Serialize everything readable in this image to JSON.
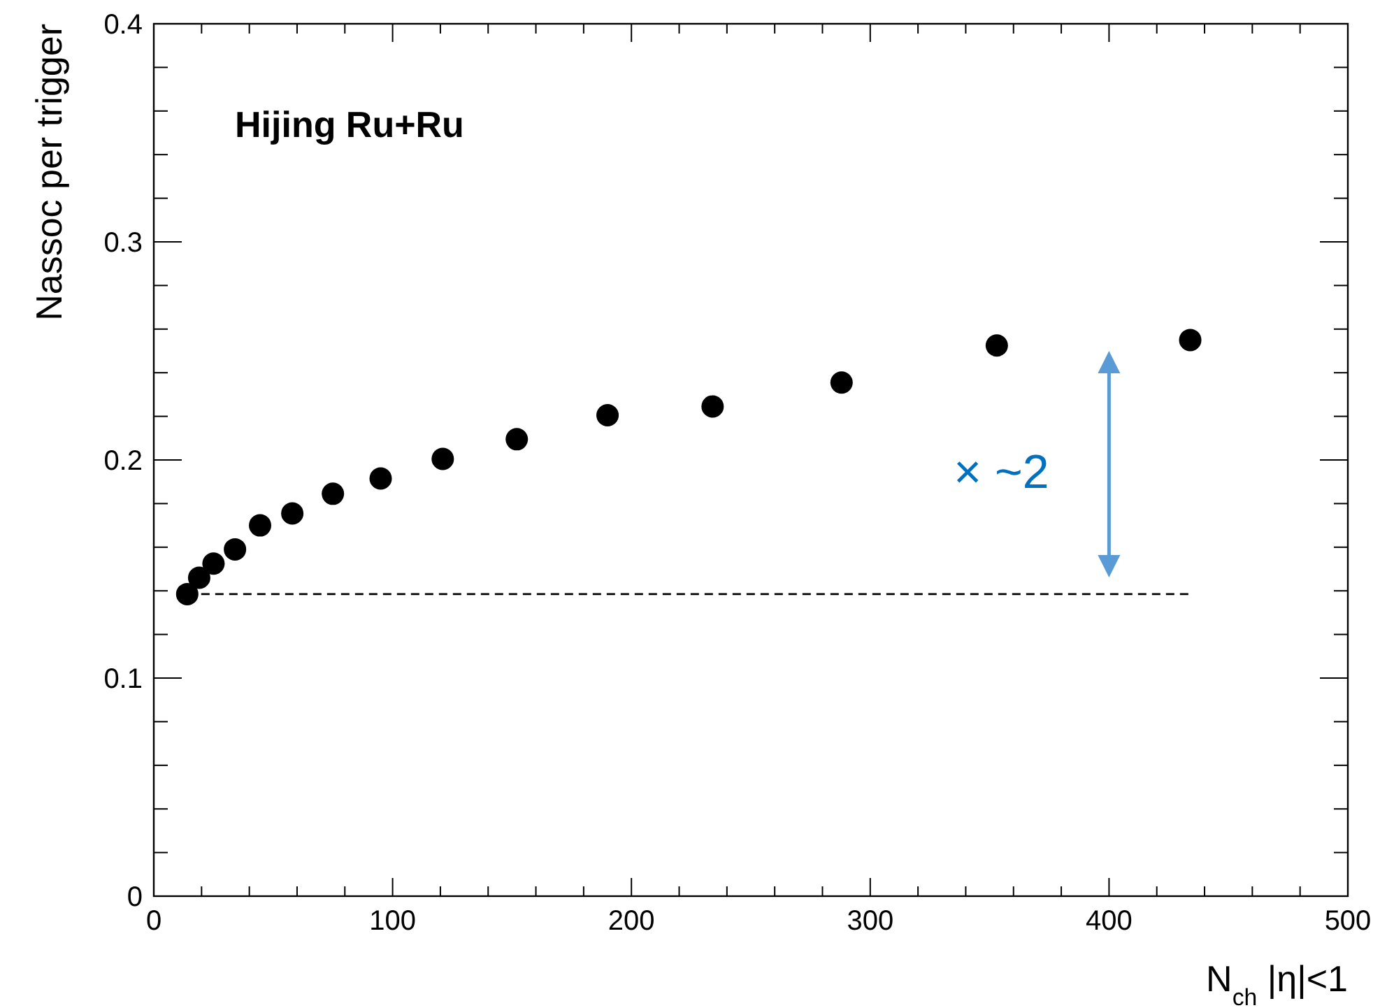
{
  "chart_data": {
    "type": "scatter",
    "title": "Hijing Ru+Ru",
    "xlabel": "N$_{ch}$ |η|<1",
    "ylabel": "Nassoc per trigger",
    "x": [
      14,
      19,
      25,
      34,
      44.5,
      58,
      75,
      95,
      121,
      152,
      190,
      234,
      288,
      353,
      434
    ],
    "series": [
      {
        "color": "#000000",
        "marker": "circle",
        "values": [
          0.1385,
          0.146,
          0.1525,
          0.159,
          0.17,
          0.1755,
          0.1845,
          0.1915,
          0.2005,
          0.2095,
          0.2205,
          0.2245,
          0.2355,
          0.2525,
          0.255
        ]
      },
      {
        "type": "line",
        "color": "#000000",
        "line_style": "dashed",
        "x": [
          14,
          434
        ],
        "values": [
          0.1385,
          0.1385
        ]
      }
    ],
    "annotations": [
      "× ~2"
    ],
    "xlim": [
      0,
      500
    ],
    "ylim": [
      0,
      0.4
    ],
    "xticks": [
      0,
      {
        "value": 20,
        "label": null
      },
      {
        "value": 40,
        "label": null
      },
      {
        "value": 60,
        "label": null
      },
      {
        "value": 80,
        "label": null
      },
      100,
      {
        "value": 120,
        "label": null
      },
      {
        "value": 140,
        "label": null
      },
      {
        "value": 160,
        "label": null
      },
      {
        "value": 180,
        "label": null
      },
      200,
      {
        "value": 220,
        "label": null
      },
      {
        "value": 240,
        "label": null
      },
      {
        "value": 260,
        "label": null
      },
      {
        "value": 280,
        "label": null
      },
      300,
      {
        "value": 320,
        "label": null
      },
      {
        "value": 340,
        "label": null
      },
      {
        "value": 360,
        "label": null
      },
      {
        "value": 380,
        "label": null
      },
      400,
      {
        "value": 420,
        "label": null
      },
      {
        "value": 440,
        "label": null
      },
      {
        "value": 460,
        "label": null
      },
      {
        "value": 480,
        "label": null
      },
      500
    ],
    "yticks": [
      0,
      {
        "value": 0.02,
        "label": null
      },
      {
        "value": 0.04,
        "label": null
      },
      {
        "value": 0.06,
        "label": null
      },
      {
        "value": 0.08,
        "label": null
      },
      0.1,
      {
        "value": 0.12,
        "label": null
      },
      {
        "value": 0.14,
        "label": null
      },
      {
        "value": 0.16,
        "label": null
      },
      {
        "value": 0.18,
        "label": null
      },
      0.2,
      {
        "value": 0.22,
        "label": null
      },
      {
        "value": 0.24,
        "label": null
      },
      {
        "value": 0.26,
        "label": null
      },
      {
        "value": 0.28,
        "label": null
      },
      0.3,
      {
        "value": 0.32,
        "label": null
      },
      {
        "value": 0.34,
        "label": null
      },
      {
        "value": 0.36,
        "label": null
      },
      {
        "value": 0.38,
        "label": null
      },
      0.4
    ],
    "grid": false
  }
}
